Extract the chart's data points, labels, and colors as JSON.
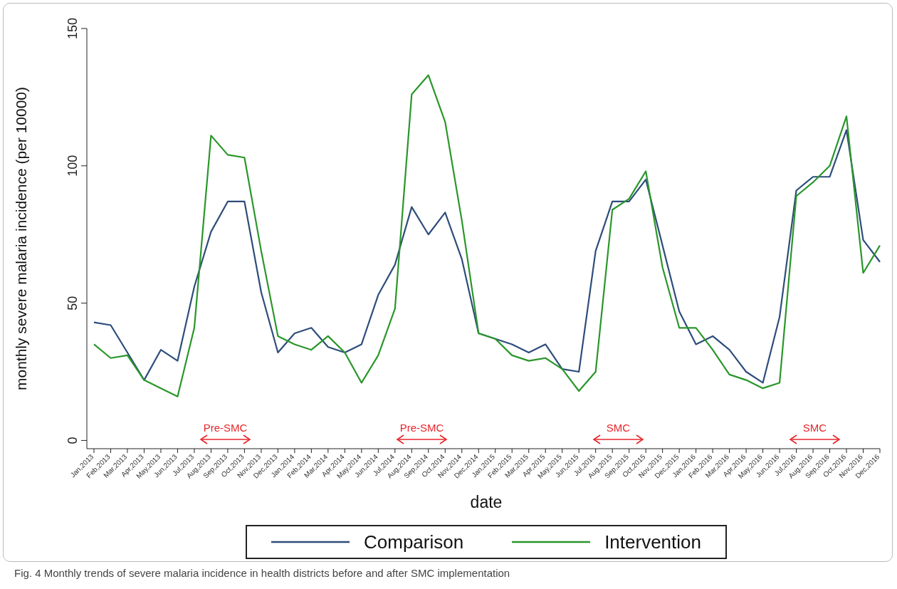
{
  "chart_data": {
    "type": "line",
    "xlabel": "date",
    "ylabel": "monthly severe malaria incidence (per 10000)",
    "categories": [
      "Jan,2013",
      "Feb,2013",
      "Mar,2013",
      "Apr,2013",
      "May,2013",
      "Jun,2013",
      "Jul,2013",
      "Aug,2013",
      "Sep,2013",
      "Oct,2013",
      "Nov,2013",
      "Dec,2013",
      "Jan,2014",
      "Feb,2014",
      "Mar,2014",
      "Apr,2014",
      "May,2014",
      "Jun,2014",
      "Jul,2014",
      "Aug,2014",
      "Sep,2014",
      "Oct,2014",
      "Nov,2014",
      "Dec,2014",
      "Jan,2015",
      "Feb,2015",
      "Mar,2015",
      "Apr,2015",
      "May,2015",
      "Jun,2015",
      "Jul,2015",
      "Aug,2015",
      "Sep,2015",
      "Oct,2015",
      "Nov,2015",
      "Dec,2015",
      "Jan,2016",
      "Feb,2016",
      "Mar,2016",
      "Apr,2016",
      "May,2016",
      "Jun,2016",
      "Jul,2016",
      "Aug,2016",
      "Sep,2016",
      "Oct,2016",
      "Nov,2016",
      "Dec,2016"
    ],
    "series": [
      {
        "name": "Comparison",
        "color": "#2e4d7b",
        "values": [
          43,
          42,
          32,
          22,
          33,
          29,
          56,
          76,
          87,
          87,
          54,
          32,
          39,
          41,
          34,
          32,
          35,
          53,
          64,
          85,
          75,
          83,
          66,
          39,
          37,
          35,
          32,
          35,
          26,
          25,
          69,
          87,
          87,
          95,
          71,
          47,
          35,
          38,
          33,
          25,
          21,
          45,
          91,
          96,
          96,
          113,
          73,
          65
        ]
      },
      {
        "name": "Intervention",
        "color": "#2a962a",
        "values": [
          35,
          30,
          31,
          22,
          19,
          16,
          41,
          111,
          104,
          103,
          69,
          38,
          35,
          33,
          38,
          32,
          21,
          31,
          48,
          126,
          133,
          116,
          80,
          39,
          37,
          31,
          29,
          30,
          26,
          18,
          25,
          84,
          88,
          98,
          63,
          41,
          41,
          33,
          24,
          22,
          19,
          21,
          89,
          94,
          100,
          118,
          61,
          71
        ]
      }
    ],
    "ylim": [
      -3,
      150
    ],
    "yticks": [
      0,
      50,
      100,
      150
    ],
    "grid": false,
    "legend": "bottom",
    "marker": "none",
    "line_style": "solid",
    "annotations": [
      "Pre-SMC",
      "Pre-SMC",
      "SMC",
      "SMC",
      "Fig. 4 Monthly trends of severe malaria incidence in health districts before and after SMC implementation"
    ]
  }
}
